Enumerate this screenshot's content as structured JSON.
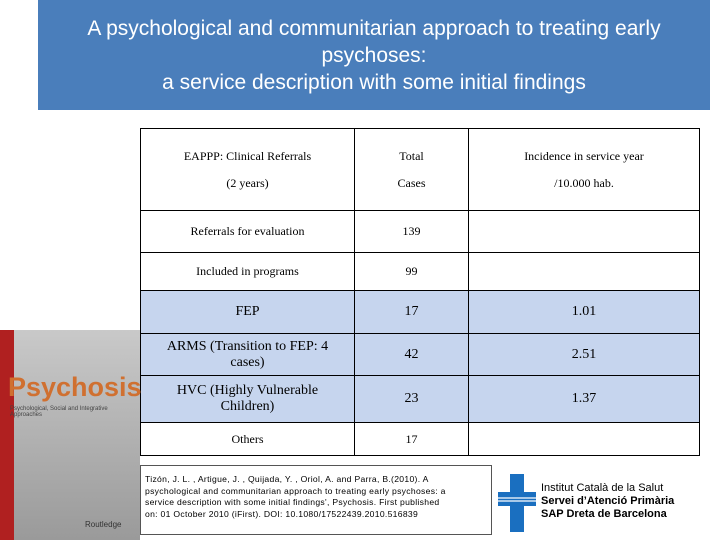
{
  "title": [
    "A psychological and communitarian approach to treating early",
    "psychoses:",
    "a service description with some initial findings"
  ],
  "table": {
    "header": [
      [
        "EAPPP: Clinical Referrals",
        "(2 years)"
      ],
      [
        "Total",
        "Cases"
      ],
      [
        "Incidence in service year",
        "/10.000 hab."
      ]
    ],
    "rows": [
      [
        "Referrals for evaluation",
        "139"
      ],
      [
        "Included in programs",
        "99"
      ],
      [
        "FEP",
        "17",
        "1.01"
      ],
      [
        "ARMS (Transition to FEP: 4 cases)",
        "42",
        "2.51"
      ],
      [
        "HVC (Highly Vulnerable Children)",
        "23",
        "1.37"
      ],
      [
        "Others",
        "17"
      ]
    ]
  },
  "cover": {
    "title": "Psychosis",
    "subtitle": "Psychological, Social and Integrative Approaches",
    "publisher": "Routledge"
  },
  "citation": [
    "Tizón, J. L. , Artigue, J. , Quijada, Y. , Oriol, A. and Parra, B.(2010). A",
    "psychological and communitarian approach to treating early psychoses: a",
    "service description with some initial findings', Psychosis. First published",
    "on: 01 October 2010 (iFirst). DOI: 10.1080/17522439.2010.516839"
  ],
  "institution": [
    "Institut Català de la Salut",
    "Servei d’Atenció Primària",
    "SAP Dreta de Barcelona"
  ]
}
